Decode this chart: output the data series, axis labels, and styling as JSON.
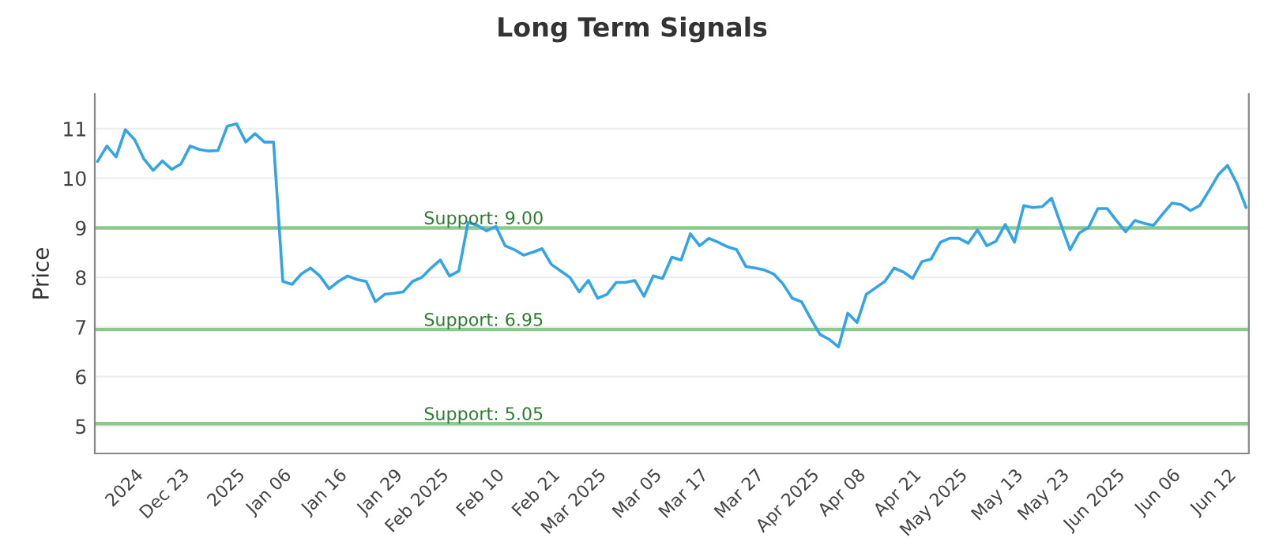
{
  "chart_data": {
    "type": "line",
    "title": "Long Term Signals",
    "ylabel": "Price",
    "categories": [
      null,
      null,
      null,
      null,
      "2024",
      null,
      null,
      null,
      null,
      "Dec 23",
      null,
      null,
      null,
      null,
      null,
      "2025",
      null,
      null,
      null,
      null,
      "Jan 06",
      null,
      null,
      null,
      null,
      null,
      "Jan 16",
      null,
      null,
      null,
      null,
      null,
      "Jan 29",
      null,
      null,
      null,
      null,
      "Feb 2025",
      null,
      null,
      null,
      null,
      null,
      "Feb 10",
      null,
      null,
      null,
      null,
      null,
      "Feb 21",
      null,
      null,
      null,
      null,
      "Mar 2025",
      null,
      null,
      null,
      null,
      null,
      "Mar 05",
      null,
      null,
      null,
      null,
      "Mar 17",
      null,
      null,
      null,
      null,
      null,
      "Mar 27",
      null,
      null,
      null,
      null,
      null,
      "Apr 2025",
      null,
      null,
      null,
      null,
      "Apr 08",
      null,
      null,
      null,
      null,
      null,
      "Apr 21",
      null,
      null,
      null,
      null,
      "May 2025",
      null,
      null,
      null,
      null,
      null,
      "May 13",
      null,
      null,
      null,
      null,
      "May 23",
      null,
      null,
      null,
      null,
      null,
      "Jun 2025",
      null,
      null,
      null,
      null,
      null,
      "Jun 06",
      null,
      null,
      null,
      null,
      null,
      "Jun 12",
      null,
      null
    ],
    "series": [
      {
        "color": "#35a4e6",
        "values": [
          10.34,
          10.65,
          10.43,
          10.98,
          10.78,
          10.39,
          10.16,
          10.35,
          10.18,
          10.29,
          10.65,
          10.58,
          10.55,
          10.56,
          11.05,
          11.1,
          10.73,
          10.9,
          10.73,
          10.73,
          7.92,
          7.86,
          8.07,
          8.19,
          8.03,
          7.77,
          7.92,
          8.03,
          7.96,
          7.92,
          7.51,
          7.66,
          7.68,
          7.71,
          7.92,
          8.0,
          8.19,
          8.35,
          8.03,
          8.13,
          9.11,
          9.05,
          8.94,
          9.03,
          8.64,
          8.56,
          8.45,
          8.51,
          8.58,
          8.26,
          8.13,
          8.0,
          7.71,
          7.94,
          7.58,
          7.66,
          7.9,
          7.9,
          7.94,
          7.62,
          8.03,
          7.98,
          8.41,
          8.35,
          8.88,
          8.64,
          8.79,
          8.71,
          8.62,
          8.56,
          8.22,
          8.19,
          8.15,
          8.07,
          7.87,
          7.58,
          7.51,
          7.17,
          6.85,
          6.75,
          6.6,
          7.28,
          7.09,
          7.66,
          7.79,
          7.92,
          8.19,
          8.11,
          7.98,
          8.32,
          8.37,
          8.71,
          8.79,
          8.79,
          8.69,
          8.96,
          8.64,
          8.73,
          9.07,
          8.71,
          9.45,
          9.41,
          9.43,
          9.6,
          9.07,
          8.56,
          8.9,
          9.01,
          9.39,
          9.39,
          9.15,
          8.92,
          9.15,
          9.09,
          9.05,
          9.28,
          9.5,
          9.47,
          9.35,
          9.45,
          9.75,
          10.07,
          10.26,
          9.9,
          9.41
        ]
      }
    ],
    "ylim": [
      4.45,
      11.7
    ],
    "yticks": [
      5,
      6,
      7,
      8,
      9,
      10,
      11
    ],
    "grid": "y",
    "legend": false,
    "marker": "none",
    "line_style": "solid",
    "ref_lines": [
      {
        "axis": "y",
        "value": 9.0,
        "label": "Support: 9.00",
        "color": "#8cc98c"
      },
      {
        "axis": "y",
        "value": 6.95,
        "label": "Support: 6.95",
        "color": "#8cc98c"
      },
      {
        "axis": "y",
        "value": 5.05,
        "label": "Support: 5.05",
        "color": "#8cc98c"
      }
    ]
  }
}
